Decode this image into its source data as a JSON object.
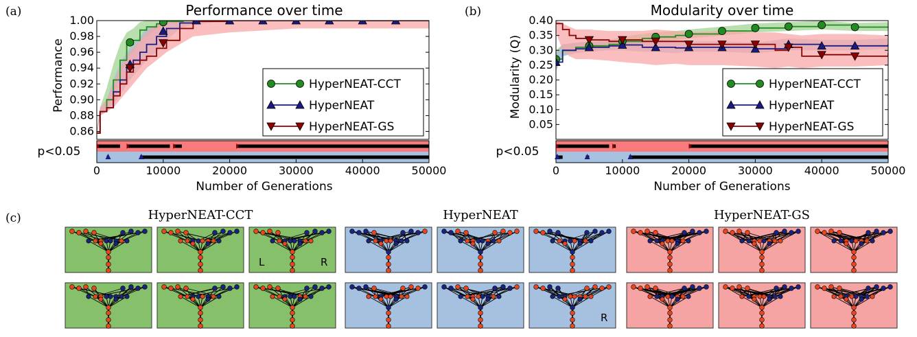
{
  "panel_labels": [
    "(a)",
    "(b)",
    "(c)"
  ],
  "significance_label": "p<0.05",
  "colors": {
    "cct": "#228B22",
    "cct_band": "#9BD28C",
    "hn": "#1A1A80",
    "hn_band": "#A7BEDC",
    "gs": "#8B0000",
    "gs_band": "#F9A3A3",
    "sig_red": "#F97A7A",
    "sig_blue": "#A7C1E0",
    "node_red": "#E8461E",
    "node_blue": "#1A237E",
    "bg_green": "#86C06A",
    "bg_blue": "#A6C1DF",
    "bg_red": "#F6A3A3"
  },
  "chart_data": [
    {
      "type": "line",
      "title": "Performance over time",
      "xlabel": "Number of Generations",
      "ylabel": "Performance",
      "xlim": [
        0,
        50000
      ],
      "ylim": [
        0.85,
        1.0
      ],
      "xticks": [
        "0",
        "10000",
        "20000",
        "30000",
        "40000",
        "50000"
      ],
      "yticks": [
        "0.86",
        "0.88",
        "0.90",
        "0.92",
        "0.94",
        "0.96",
        "0.98",
        "1.00"
      ],
      "legend": "center-right",
      "series": [
        {
          "name": "HyperNEAT-CCT",
          "marker": "circle",
          "x": [
            0,
            500,
            1500,
            2500,
            3500,
            4500,
            5500,
            6500,
            7500,
            9000,
            10500,
            13000,
            20000,
            30000,
            40000,
            50000
          ],
          "y": [
            0.858,
            0.885,
            0.9,
            0.925,
            0.95,
            0.97,
            0.975,
            0.988,
            0.992,
            0.996,
            0.999,
            1.0,
            1.0,
            1.0,
            1.0,
            1.0
          ],
          "band_low": [
            0.855,
            0.88,
            0.89,
            0.905,
            0.93,
            0.95,
            0.96,
            0.975,
            0.98,
            0.99,
            0.995,
            0.998,
            1.0,
            1.0,
            1.0,
            1.0
          ],
          "band_high": [
            0.86,
            0.89,
            0.915,
            0.945,
            0.97,
            0.985,
            0.99,
            0.998,
            1.0,
            1.0,
            1.0,
            1.0,
            1.0,
            1.0,
            1.0,
            1.0
          ],
          "markers_x": [
            5000,
            10000
          ]
        },
        {
          "name": "HyperNEAT",
          "marker": "triangle",
          "x": [
            0,
            500,
            1500,
            2500,
            3500,
            4500,
            5500,
            6500,
            7500,
            9000,
            10500,
            12500,
            14500,
            20000,
            30000,
            40000,
            50000
          ],
          "y": [
            0.858,
            0.885,
            0.89,
            0.91,
            0.925,
            0.94,
            0.95,
            0.96,
            0.97,
            0.98,
            0.99,
            0.997,
            1.0,
            1.0,
            1.0,
            1.0,
            1.0
          ],
          "band_low": [
            0.855,
            0.88,
            0.885,
            0.895,
            0.905,
            0.92,
            0.93,
            0.94,
            0.95,
            0.96,
            0.975,
            0.99,
            0.995,
            1.0,
            1.0,
            1.0,
            1.0
          ],
          "band_high": [
            0.86,
            0.89,
            0.9,
            0.925,
            0.945,
            0.96,
            0.97,
            0.98,
            0.99,
            0.995,
            1.0,
            1.0,
            1.0,
            1.0,
            1.0,
            1.0,
            1.0
          ],
          "markers_x": [
            5000,
            10000,
            15000,
            20000,
            25000,
            30000,
            35000,
            40000,
            45000
          ]
        },
        {
          "name": "HyperNEAT-GS",
          "marker": "triangle-down",
          "x": [
            0,
            500,
            1500,
            2500,
            3500,
            4500,
            5500,
            6500,
            7500,
            9000,
            10500,
            12500,
            14500,
            20000,
            30000,
            40000,
            50000
          ],
          "y": [
            0.858,
            0.885,
            0.89,
            0.905,
            0.92,
            0.935,
            0.945,
            0.95,
            0.955,
            0.965,
            0.975,
            0.99,
            0.999,
            1.0,
            1.0,
            1.0,
            1.0
          ],
          "band_low": [
            0.855,
            0.88,
            0.885,
            0.89,
            0.9,
            0.91,
            0.92,
            0.93,
            0.94,
            0.95,
            0.96,
            0.97,
            0.98,
            0.985,
            0.99,
            0.99,
            0.99
          ],
          "band_high": [
            0.86,
            0.89,
            0.9,
            0.92,
            0.94,
            0.955,
            0.965,
            0.975,
            0.985,
            0.995,
            1.0,
            1.0,
            1.0,
            1.0,
            1.0,
            1.0,
            1.0
          ],
          "markers_x": [
            5000,
            10000
          ]
        }
      ],
      "significance": {
        "red_marks": [
          [
            0,
            3500
          ],
          [
            4500,
            11000
          ],
          [
            11500,
            12800
          ],
          [
            21000,
            50000
          ]
        ],
        "blue_marks": [
          [
            1500,
            1800
          ],
          [
            6500,
            50000
          ]
        ]
      }
    },
    {
      "type": "line",
      "title": "Modularity over time",
      "xlabel": "Number of Generations",
      "ylabel": "Modularity (Q)",
      "xlim": [
        0,
        50000
      ],
      "ylim": [
        0.0,
        0.4
      ],
      "xticks": [
        "0",
        "10000",
        "20000",
        "30000",
        "40000",
        "50000"
      ],
      "yticks": [
        "0.05",
        "0.10",
        "0.15",
        "0.20",
        "0.25",
        "0.30",
        "0.35",
        "0.40"
      ],
      "legend": "center-right",
      "series": [
        {
          "name": "HyperNEAT-CCT",
          "marker": "circle",
          "x": [
            0,
            1000,
            3000,
            5000,
            8000,
            10000,
            13000,
            15000,
            18000,
            20000,
            25000,
            30000,
            35000,
            40000,
            45000,
            50000
          ],
          "y": [
            0.27,
            0.3,
            0.31,
            0.315,
            0.32,
            0.33,
            0.34,
            0.345,
            0.35,
            0.355,
            0.365,
            0.375,
            0.38,
            0.385,
            0.378,
            0.38
          ],
          "band_low": [
            0.24,
            0.28,
            0.295,
            0.3,
            0.305,
            0.315,
            0.325,
            0.33,
            0.335,
            0.34,
            0.35,
            0.36,
            0.365,
            0.37,
            0.365,
            0.365
          ],
          "band_high": [
            0.3,
            0.32,
            0.325,
            0.33,
            0.335,
            0.345,
            0.355,
            0.36,
            0.365,
            0.37,
            0.38,
            0.39,
            0.395,
            0.4,
            0.392,
            0.395
          ],
          "markers_x": [
            0,
            5000,
            10000,
            15000,
            20000,
            25000,
            30000,
            35000,
            40000,
            45000
          ]
        },
        {
          "name": "HyperNEAT",
          "marker": "triangle",
          "x": [
            0,
            1000,
            3000,
            5000,
            8000,
            10000,
            13000,
            15000,
            18000,
            20000,
            25000,
            30000,
            35000,
            40000,
            45000,
            50000
          ],
          "y": [
            0.26,
            0.3,
            0.305,
            0.31,
            0.315,
            0.318,
            0.31,
            0.31,
            0.308,
            0.31,
            0.31,
            0.305,
            0.32,
            0.315,
            0.315,
            0.32
          ],
          "band_low": [
            0.23,
            0.28,
            0.29,
            0.295,
            0.3,
            0.3,
            0.295,
            0.295,
            0.29,
            0.295,
            0.295,
            0.29,
            0.3,
            0.3,
            0.3,
            0.305
          ],
          "band_high": [
            0.29,
            0.32,
            0.325,
            0.33,
            0.335,
            0.335,
            0.33,
            0.33,
            0.33,
            0.33,
            0.33,
            0.325,
            0.34,
            0.335,
            0.335,
            0.34
          ],
          "markers_x": [
            0,
            5000,
            10000,
            15000,
            20000,
            25000,
            30000,
            35000,
            40000,
            45000
          ]
        },
        {
          "name": "HyperNEAT-GS",
          "marker": "triangle-down",
          "x": [
            0,
            1000,
            2000,
            3000,
            5000,
            8000,
            10000,
            13000,
            15000,
            18000,
            20000,
            25000,
            30000,
            33000,
            35000,
            37000,
            40000,
            45000,
            50000
          ],
          "y": [
            0.39,
            0.37,
            0.35,
            0.34,
            0.335,
            0.33,
            0.335,
            0.33,
            0.33,
            0.33,
            0.32,
            0.32,
            0.32,
            0.3,
            0.31,
            0.28,
            0.285,
            0.28,
            0.29
          ],
          "band_low": [
            0.36,
            0.3,
            0.28,
            0.27,
            0.27,
            0.265,
            0.26,
            0.255,
            0.25,
            0.255,
            0.25,
            0.25,
            0.245,
            0.24,
            0.245,
            0.24,
            0.245,
            0.245,
            0.25
          ],
          "band_high": [
            0.4,
            0.39,
            0.38,
            0.37,
            0.37,
            0.365,
            0.365,
            0.365,
            0.37,
            0.365,
            0.36,
            0.365,
            0.36,
            0.36,
            0.355,
            0.35,
            0.355,
            0.355,
            0.35
          ],
          "markers_x": [
            5000,
            10000,
            15000,
            20000,
            25000,
            30000,
            35000,
            40000,
            45000
          ]
        }
      ],
      "significance": {
        "red_marks": [
          [
            0,
            8000
          ],
          [
            8500,
            9000
          ],
          [
            20000,
            50000
          ]
        ],
        "blue_marks": [
          [
            0,
            1000
          ],
          [
            4500,
            5000
          ],
          [
            11000,
            50000
          ]
        ]
      }
    }
  ],
  "networks": {
    "groups": [
      {
        "title": "HyperNEAT-CCT",
        "bg": "green",
        "density": 1,
        "rows": [
          [
            "",
            "",
            "LR"
          ],
          [
            "",
            "",
            ""
          ]
        ]
      },
      {
        "title": "HyperNEAT",
        "bg": "blue",
        "density": 2,
        "rows": [
          [
            "",
            "",
            ""
          ],
          [
            "",
            "",
            "R"
          ]
        ]
      },
      {
        "title": "HyperNEAT-GS",
        "bg": "red",
        "density": 3,
        "rows": [
          [
            "",
            "",
            ""
          ],
          [
            "",
            "",
            ""
          ]
        ]
      }
    ],
    "labels": {
      "L": "L",
      "R": "R"
    }
  }
}
